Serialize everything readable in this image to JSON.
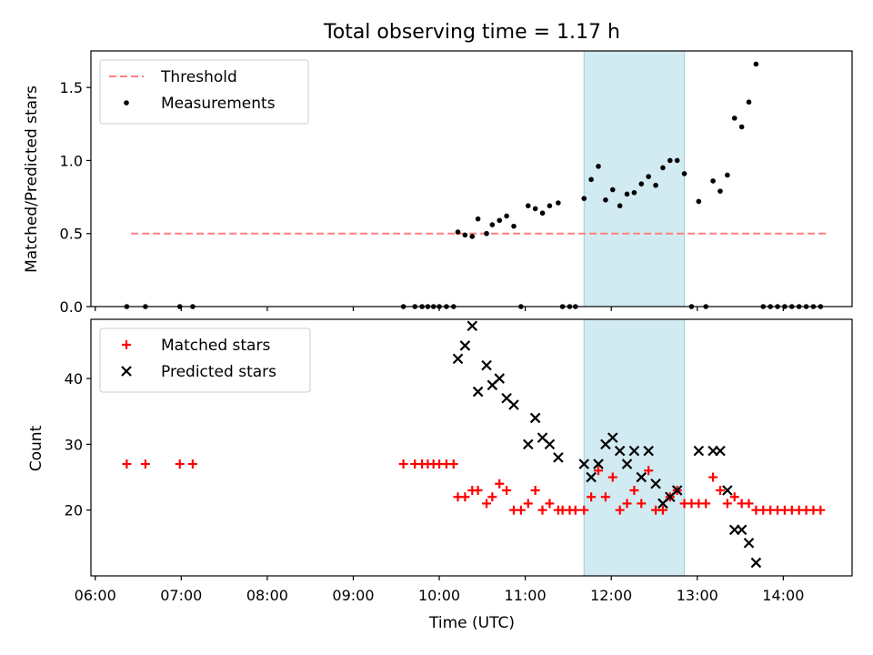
{
  "chart_data": [
    {
      "type": "scatter",
      "title": "Total observing time = 1.17 h",
      "ylabel": "Matched/Predicted stars",
      "xlabel": "",
      "ylim": [
        0,
        1.75
      ],
      "yticks": [
        "0.0",
        "0.5",
        "1.0",
        "1.5"
      ],
      "ytick_values": [
        0,
        0.5,
        1.0,
        1.5
      ],
      "xlim": [
        "05:57",
        "14:48"
      ],
      "legend_loc": "upper left",
      "highlight_span": {
        "x0": "11:41",
        "x1": "12:51",
        "color": "#add8e6"
      },
      "threshold": {
        "name": "Threshold",
        "y": 0.5,
        "x0": "06:25",
        "x1": "14:30",
        "color": "#ff7f7f",
        "style": "dashed"
      },
      "series": [
        {
          "name": "Measurements",
          "color": "#000000",
          "marker": "dot",
          "x": [
            "06:22",
            "06:35",
            "06:59",
            "07:08",
            "09:35",
            "09:43",
            "09:48",
            "09:52",
            "09:56",
            "10:00",
            "10:05",
            "10:10",
            "10:13",
            "10:18",
            "10:23",
            "10:27",
            "10:33",
            "10:37",
            "10:42",
            "10:47",
            "10:52",
            "10:57",
            "11:02",
            "11:07",
            "11:12",
            "11:17",
            "11:23",
            "11:26",
            "11:31",
            "11:35",
            "11:41",
            "11:46",
            "11:51",
            "11:56",
            "12:01",
            "12:06",
            "12:11",
            "12:16",
            "12:21",
            "12:26",
            "12:31",
            "12:36",
            "12:41",
            "12:46",
            "12:51",
            "12:56",
            "13:01",
            "13:06",
            "13:11",
            "13:16",
            "13:21",
            "13:26",
            "13:31",
            "13:36",
            "13:41",
            "13:46",
            "13:51",
            "13:56",
            "14:01",
            "14:06",
            "14:11",
            "14:16",
            "14:21",
            "14:26"
          ],
          "y": [
            0,
            0,
            0,
            0,
            0,
            0,
            0,
            0,
            0,
            0,
            0,
            0,
            0.51,
            0.49,
            0.48,
            0.6,
            0.5,
            0.56,
            0.59,
            0.62,
            0.55,
            0,
            0.69,
            0.67,
            0.64,
            0.69,
            0.71,
            0,
            0,
            0,
            0.74,
            0.87,
            0.96,
            0.73,
            0.8,
            0.69,
            0.77,
            0.78,
            0.84,
            0.89,
            0.83,
            0.95,
            1.0,
            1.0,
            0.91,
            0,
            0.72,
            0,
            0.86,
            0.79,
            0.9,
            1.29,
            1.23,
            1.4,
            1.66,
            0,
            0,
            0,
            0,
            0,
            0,
            0,
            0,
            0
          ]
        }
      ]
    },
    {
      "type": "scatter",
      "title": "",
      "ylabel": "Count",
      "xlabel": "Time (UTC)",
      "ylim": [
        10,
        49
      ],
      "yticks": [
        "20",
        "30",
        "40"
      ],
      "ytick_values": [
        20,
        30,
        40
      ],
      "xticks": [
        "06:00",
        "07:00",
        "08:00",
        "09:00",
        "10:00",
        "11:00",
        "12:00",
        "13:00",
        "14:00"
      ],
      "xlim": [
        "05:57",
        "14:48"
      ],
      "legend_loc": "upper left",
      "highlight_span": {
        "x0": "11:41",
        "x1": "12:51",
        "color": "#add8e6"
      },
      "series": [
        {
          "name": "Matched stars",
          "color": "#ff0000",
          "marker": "plus",
          "x": [
            "06:22",
            "06:35",
            "06:59",
            "07:08",
            "09:35",
            "09:43",
            "09:48",
            "09:52",
            "09:56",
            "10:00",
            "10:05",
            "10:10",
            "10:13",
            "10:18",
            "10:23",
            "10:27",
            "10:33",
            "10:37",
            "10:42",
            "10:47",
            "10:52",
            "10:57",
            "11:02",
            "11:07",
            "11:12",
            "11:17",
            "11:23",
            "11:26",
            "11:31",
            "11:35",
            "11:41",
            "11:46",
            "11:51",
            "11:56",
            "12:01",
            "12:06",
            "12:11",
            "12:16",
            "12:21",
            "12:26",
            "12:31",
            "12:36",
            "12:41",
            "12:46",
            "12:51",
            "12:56",
            "13:01",
            "13:06",
            "13:11",
            "13:16",
            "13:21",
            "13:26",
            "13:31",
            "13:36",
            "13:41",
            "13:46",
            "13:51",
            "13:56",
            "14:01",
            "14:06",
            "14:11",
            "14:16",
            "14:21",
            "14:26"
          ],
          "y": [
            27,
            27,
            27,
            27,
            27,
            27,
            27,
            27,
            27,
            27,
            27,
            27,
            22,
            22,
            23,
            23,
            21,
            22,
            24,
            23,
            20,
            20,
            21,
            23,
            20,
            21,
            20,
            20,
            20,
            20,
            20,
            22,
            26,
            22,
            25,
            20,
            21,
            23,
            21,
            26,
            20,
            20,
            22,
            23,
            21,
            21,
            21,
            21,
            25,
            23,
            21,
            22,
            21,
            21,
            20,
            20,
            20,
            20,
            20,
            20,
            20,
            20,
            20,
            20
          ]
        },
        {
          "name": "Predicted stars",
          "color": "#000000",
          "marker": "x",
          "x": [
            "10:13",
            "10:18",
            "10:23",
            "10:27",
            "10:33",
            "10:37",
            "10:42",
            "10:47",
            "10:52",
            "11:02",
            "11:07",
            "11:12",
            "11:17",
            "11:23",
            "11:41",
            "11:46",
            "11:51",
            "11:56",
            "12:01",
            "12:06",
            "12:11",
            "12:16",
            "12:21",
            "12:26",
            "12:31",
            "12:36",
            "12:41",
            "12:46",
            "13:01",
            "13:11",
            "13:16",
            "13:21",
            "13:26",
            "13:31",
            "13:36",
            "13:41"
          ],
          "y": [
            43,
            45,
            48,
            38,
            42,
            39,
            40,
            37,
            36,
            30,
            34,
            31,
            30,
            28,
            27,
            25,
            27,
            30,
            31,
            29,
            27,
            29,
            25,
            29,
            24,
            21,
            22,
            23,
            29,
            29,
            29,
            23,
            17,
            17,
            15,
            12
          ]
        }
      ]
    }
  ]
}
